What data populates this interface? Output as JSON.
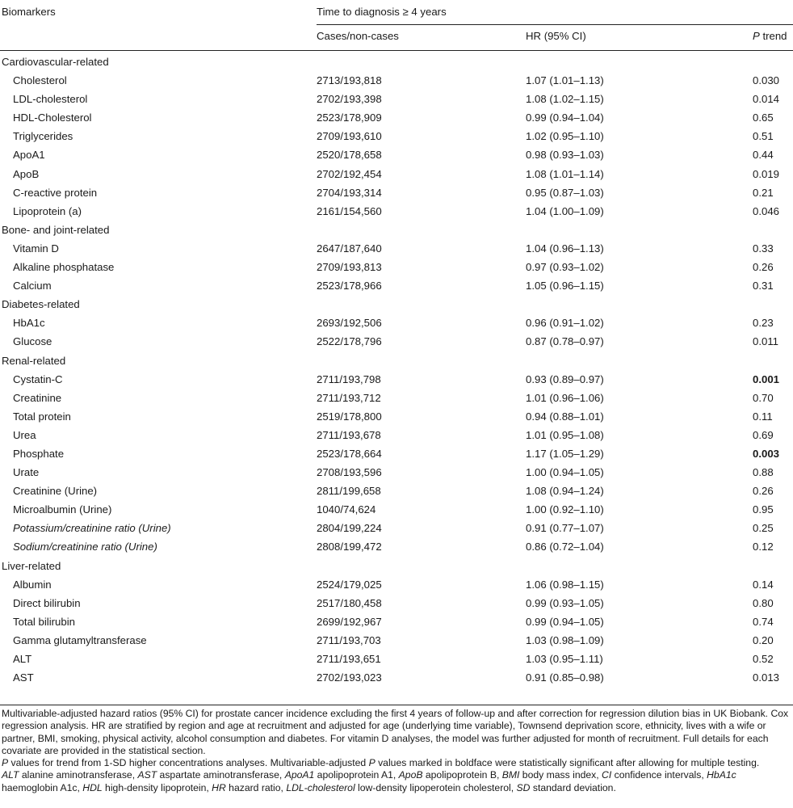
{
  "header": {
    "col1": "Biomarkers",
    "group": "Time to diagnosis ≥ 4 years",
    "col2": "Cases/non-cases",
    "col3": "HR (95% CI)",
    "col4_italic": "P",
    "col4_rest": " trend"
  },
  "rows": [
    {
      "type": "section",
      "label": "Cardiovascular-related"
    },
    {
      "type": "data",
      "label": "Cholesterol",
      "cases": "2713/193,818",
      "hr": "1.07 (1.01–1.13)",
      "p": "0.030"
    },
    {
      "type": "data",
      "label": "LDL-cholesterol",
      "cases": "2702/193,398",
      "hr": "1.08 (1.02–1.15)",
      "p": "0.014"
    },
    {
      "type": "data",
      "label": "HDL-Cholesterol",
      "cases": "2523/178,909",
      "hr": "0.99 (0.94–1.04)",
      "p": "0.65"
    },
    {
      "type": "data",
      "label": "Triglycerides",
      "cases": "2709/193,610",
      "hr": "1.02 (0.95–1.10)",
      "p": "0.51"
    },
    {
      "type": "data",
      "label": "ApoA1",
      "cases": "2520/178,658",
      "hr": "0.98 (0.93–1.03)",
      "p": "0.44"
    },
    {
      "type": "data",
      "label": "ApoB",
      "cases": "2702/192,454",
      "hr": "1.08 (1.01–1.14)",
      "p": "0.019"
    },
    {
      "type": "data",
      "label": "C-reactive protein",
      "cases": "2704/193,314",
      "hr": "0.95 (0.87–1.03)",
      "p": "0.21"
    },
    {
      "type": "data",
      "label": "Lipoprotein (a)",
      "cases": "2161/154,560",
      "hr": "1.04 (1.00–1.09)",
      "p": "0.046"
    },
    {
      "type": "section",
      "label": "Bone- and joint-related"
    },
    {
      "type": "data",
      "label": "Vitamin D",
      "cases": "2647/187,640",
      "hr": "1.04 (0.96–1.13)",
      "p": "0.33"
    },
    {
      "type": "data",
      "label": "Alkaline phosphatase",
      "cases": "2709/193,813",
      "hr": "0.97 (0.93–1.02)",
      "p": "0.26"
    },
    {
      "type": "data",
      "label": "Calcium",
      "cases": "2523/178,966",
      "hr": "1.05 (0.96–1.15)",
      "p": "0.31"
    },
    {
      "type": "section",
      "label": "Diabetes-related"
    },
    {
      "type": "data",
      "label": "HbA1c",
      "cases": "2693/192,506",
      "hr": "0.96 (0.91–1.02)",
      "p": "0.23"
    },
    {
      "type": "data",
      "label": "Glucose",
      "cases": "2522/178,796",
      "hr": "0.87 (0.78–0.97)",
      "p": "0.011"
    },
    {
      "type": "section",
      "label": "Renal-related"
    },
    {
      "type": "data",
      "label": "Cystatin-C",
      "cases": "2711/193,798",
      "hr": "0.93 (0.89–0.97)",
      "p": "0.001",
      "p_bold": true
    },
    {
      "type": "data",
      "label": "Creatinine",
      "cases": "2711/193,712",
      "hr": "1.01 (0.96–1.06)",
      "p": "0.70"
    },
    {
      "type": "data",
      "label": "Total protein",
      "cases": "2519/178,800",
      "hr": "0.94 (0.88–1.01)",
      "p": "0.11"
    },
    {
      "type": "data",
      "label": "Urea",
      "cases": "2711/193,678",
      "hr": "1.01 (0.95–1.08)",
      "p": "0.69"
    },
    {
      "type": "data",
      "label": "Phosphate",
      "cases": "2523/178,664",
      "hr": "1.17 (1.05–1.29)",
      "p": "0.003",
      "p_bold": true
    },
    {
      "type": "data",
      "label": "Urate",
      "cases": "2708/193,596",
      "hr": "1.00 (0.94–1.05)",
      "p": "0.88"
    },
    {
      "type": "data",
      "label": "Creatinine (Urine)",
      "cases": "2811/199,658",
      "hr": "1.08 (0.94–1.24)",
      "p": "0.26"
    },
    {
      "type": "data",
      "label": "Microalbumin (Urine)",
      "cases": "1040/74,624",
      "hr": "1.00 (0.92–1.10)",
      "p": "0.95"
    },
    {
      "type": "data",
      "label": "Potassium/creatinine ratio (Urine)",
      "italic": true,
      "cases": "2804/199,224",
      "hr": "0.91 (0.77–1.07)",
      "p": "0.25"
    },
    {
      "type": "data",
      "label": "Sodium/creatinine ratio (Urine)",
      "italic": true,
      "cases": "2808/199,472",
      "hr": "0.86 (0.72–1.04)",
      "p": "0.12"
    },
    {
      "type": "section",
      "label": "Liver-related"
    },
    {
      "type": "data",
      "label": "Albumin",
      "cases": "2524/179,025",
      "hr": "1.06 (0.98–1.15)",
      "p": "0.14"
    },
    {
      "type": "data",
      "label": "Direct bilirubin",
      "cases": "2517/180,458",
      "hr": "0.99 (0.93–1.05)",
      "p": "0.80"
    },
    {
      "type": "data",
      "label": "Total bilirubin",
      "cases": "2699/192,967",
      "hr": "0.99 (0.94–1.05)",
      "p": "0.74"
    },
    {
      "type": "data",
      "label": "Gamma glutamyltransferase",
      "cases": "2711/193,703",
      "hr": "1.03 (0.98–1.09)",
      "p": "0.20"
    },
    {
      "type": "data",
      "label": "ALT",
      "cases": "2711/193,651",
      "hr": "1.03 (0.95–1.11)",
      "p": "0.52"
    },
    {
      "type": "data",
      "label": "AST",
      "cases": "2702/193,023",
      "hr": "0.91 (0.85–0.98)",
      "p": "0.013"
    }
  ],
  "notes": {
    "para1": "Multivariable-adjusted hazard ratios (95% CI) for prostate cancer incidence excluding the first 4 years of follow-up and after correction for regression dilution bias in UK Biobank. Cox regression analysis. HR are stratified by region and age at recruitment and adjusted for age (underlying time variable), Townsend deprivation score, ethnicity, lives with a wife or partner, BMI, smoking, physical activity, alcohol consumption and diabetes. For vitamin D analyses, the model was further adjusted for month of recruitment. Full details for each covariate are provided in the statistical section.",
    "para2_italic": "P",
    "para2_rest": " values for trend from 1-SD higher concentrations analyses. Multivariable-adjusted ",
    "para2_italic2": "P",
    "para2_rest2": " values marked in boldface were statistically significant after allowing for multiple testing.",
    "abbreviations": [
      {
        "abbr": "ALT",
        "def": " alanine aminotransferase, "
      },
      {
        "abbr": "AST",
        "def": " aspartate aminotransferase, "
      },
      {
        "abbr": "ApoA1",
        "def": " apolipoprotein A1, "
      },
      {
        "abbr": "ApoB",
        "def": " apolipoprotein B, "
      },
      {
        "abbr": "BMI",
        "def": " body mass index, "
      },
      {
        "abbr": "CI",
        "def": " confidence intervals, "
      },
      {
        "abbr": "HbA1c",
        "def": " haemoglobin A1c, "
      },
      {
        "abbr": "HDL",
        "def": " high-density lipoprotein, "
      },
      {
        "abbr": "HR",
        "def": " hazard ratio, "
      },
      {
        "abbr": "LDL-cholesterol",
        "def": " low-density lipoperotein cholesterol, "
      },
      {
        "abbr": "SD",
        "def": " standard deviation."
      }
    ]
  }
}
